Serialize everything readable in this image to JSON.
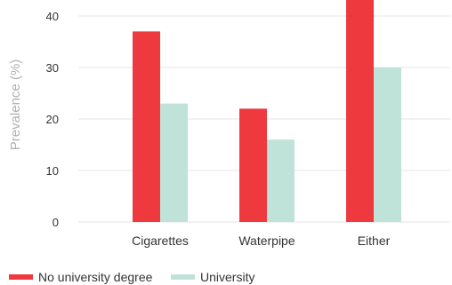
{
  "chart_data": {
    "type": "bar",
    "title": "",
    "xlabel": "",
    "ylabel": "Prevalence (%)",
    "ylim": [
      0,
      45
    ],
    "yticks": [
      0,
      10,
      20,
      30,
      40
    ],
    "categories": [
      "Cigarettes",
      "Waterpipe",
      "Either"
    ],
    "series": [
      {
        "name": "No university degree",
        "color": "#ee3a3f",
        "values": [
          37,
          22,
          45
        ]
      },
      {
        "name": "University",
        "color": "#bfe3d8",
        "values": [
          23,
          16,
          30
        ]
      }
    ],
    "grid": true,
    "legend_position": "bottom-left"
  }
}
